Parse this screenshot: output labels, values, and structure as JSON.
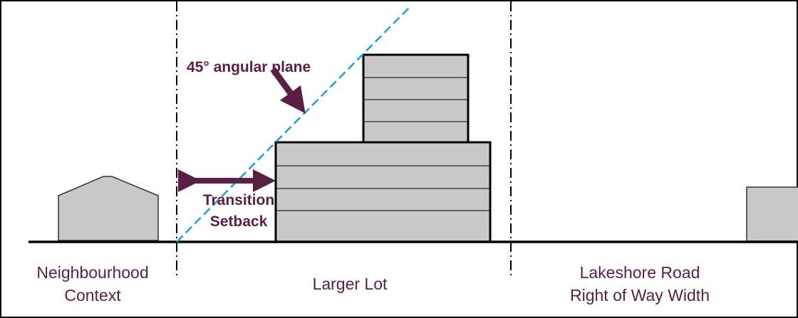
{
  "annotations": {
    "angular_plane": "45° angular plane",
    "setback": [
      "Transition",
      "Setback"
    ]
  },
  "zones": [
    {
      "label": [
        "Neighbourhood",
        "Context"
      ]
    },
    {
      "label": [
        "Larger Lot"
      ]
    },
    {
      "label": [
        "Lakeshore Road",
        "Right of Way Width"
      ]
    }
  ]
}
